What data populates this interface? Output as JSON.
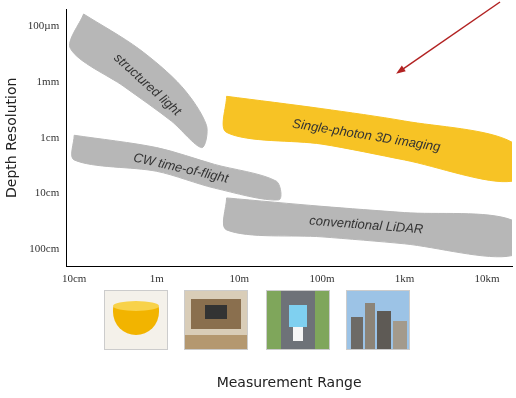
{
  "chart_data": {
    "type": "region",
    "x_label": "Measurement Range",
    "y_label": "Depth Resolution",
    "log": true,
    "grid": false,
    "xlim": [
      0.08,
      20000
    ],
    "ylim": [
      2,
      5e-05
    ],
    "xticks": [
      {
        "value": 0.1,
        "label": "10cm"
      },
      {
        "value": 1,
        "label": "1m"
      },
      {
        "value": 10,
        "label": "10m"
      },
      {
        "value": 100,
        "label": "100m"
      },
      {
        "value": 1000,
        "label": "1km"
      },
      {
        "value": 10000,
        "label": "10km"
      }
    ],
    "yticks": [
      {
        "value": 0.0001,
        "label": "100µm"
      },
      {
        "value": 0.001,
        "label": "1mm"
      },
      {
        "value": 0.01,
        "label": "1cm"
      },
      {
        "value": 0.1,
        "label": "10cm"
      },
      {
        "value": 1,
        "label": "100cm"
      }
    ],
    "series": [
      {
        "name": "structured light",
        "color": "#b7b7b7",
        "x": [
          0.13,
          0.6,
          2,
          4,
          3.5,
          1.5,
          0.4,
          0.09
        ],
        "y": [
          6e-05,
          0.00025,
          0.0012,
          0.006,
          0.015,
          0.005,
          0.0012,
          0.00025
        ]
      },
      {
        "name": "CW time-of-flight",
        "color": "#b7b7b7",
        "x": [
          0.1,
          1,
          5,
          28,
          30,
          5,
          1,
          0.1
        ],
        "y": [
          0.009,
          0.015,
          0.03,
          0.06,
          0.13,
          0.08,
          0.04,
          0.025
        ]
      },
      {
        "name": "conventional LiDAR",
        "color": "#b7b7b7",
        "x": [
          7,
          100,
          1000,
          20000,
          20000,
          1000,
          100,
          7
        ],
        "y": [
          0.12,
          0.17,
          0.22,
          0.3,
          1.3,
          0.8,
          0.6,
          0.45
        ]
      },
      {
        "name": "Single-photon 3D imaging",
        "color": "#f7c325",
        "x": [
          7,
          100,
          1000,
          20000,
          20000,
          1000,
          100,
          7
        ],
        "y": [
          0.0018,
          0.003,
          0.005,
          0.012,
          0.06,
          0.025,
          0.013,
          0.008
        ]
      }
    ]
  }
}
